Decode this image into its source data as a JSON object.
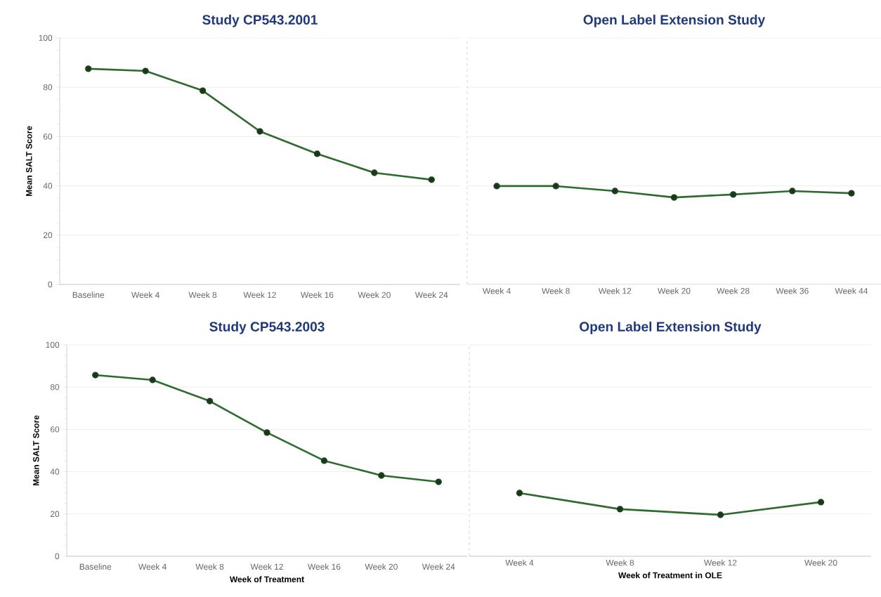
{
  "chart_data": [
    {
      "type": "line",
      "title": "Study CP543.2001",
      "ylabel": "Mean SALT Score",
      "categories": [
        "Baseline",
        "Week 4",
        "Week 8",
        "Week 12",
        "Week 16",
        "Week 20",
        "Week 24"
      ],
      "values": [
        87.5,
        86.6,
        78.6,
        62.1,
        53.0,
        45.3,
        42.5
      ],
      "color": "#2e6b2e",
      "ylim": [
        0,
        100
      ],
      "yticks": [
        0,
        20,
        40,
        60,
        80,
        100
      ],
      "grid": "y",
      "marker": "circle"
    },
    {
      "type": "line",
      "title": "Open Label Extension Study",
      "categories": [
        "Week 4",
        "Week 8",
        "Week 12",
        "Week 20",
        "Week 28",
        "Week 36",
        "Week 44"
      ],
      "values": [
        39.9,
        39.9,
        37.9,
        35.3,
        36.5,
        37.9,
        37.0
      ],
      "color": "#2e6b2e",
      "ylim": [
        0,
        100
      ],
      "yticks": [
        0,
        20,
        40,
        60,
        80,
        100
      ],
      "grid": "y",
      "marker": "circle",
      "tick_labels": "x"
    },
    {
      "type": "line",
      "title": "Study CP543.2003",
      "ylabel": "Mean SALT Score",
      "xlabel": "Week of Treatment",
      "categories": [
        "Baseline",
        "Week 4",
        "Week 8",
        "Week 12",
        "Week 16",
        "Week 20",
        "Week 24"
      ],
      "values": [
        85.7,
        83.4,
        73.4,
        58.5,
        45.2,
        38.2,
        35.2
      ],
      "color": "#2e6b2e",
      "ylim": [
        0,
        100
      ],
      "yticks": [
        0,
        20,
        40,
        60,
        80,
        100
      ],
      "grid": "y",
      "marker": "circle"
    },
    {
      "type": "line",
      "title": "Open Label Extension Study",
      "xlabel": "Week of Treatment in OLE",
      "categories": [
        "Week 4",
        "Week 8",
        "Week 12",
        "Week 20"
      ],
      "values": [
        29.9,
        22.3,
        19.6,
        25.6
      ],
      "color": "#2e6b2e",
      "ylim": [
        0,
        100
      ],
      "yticks": [
        0,
        20,
        40,
        60,
        80,
        100
      ],
      "grid": "y",
      "marker": "circle",
      "tick_labels": "x"
    }
  ]
}
